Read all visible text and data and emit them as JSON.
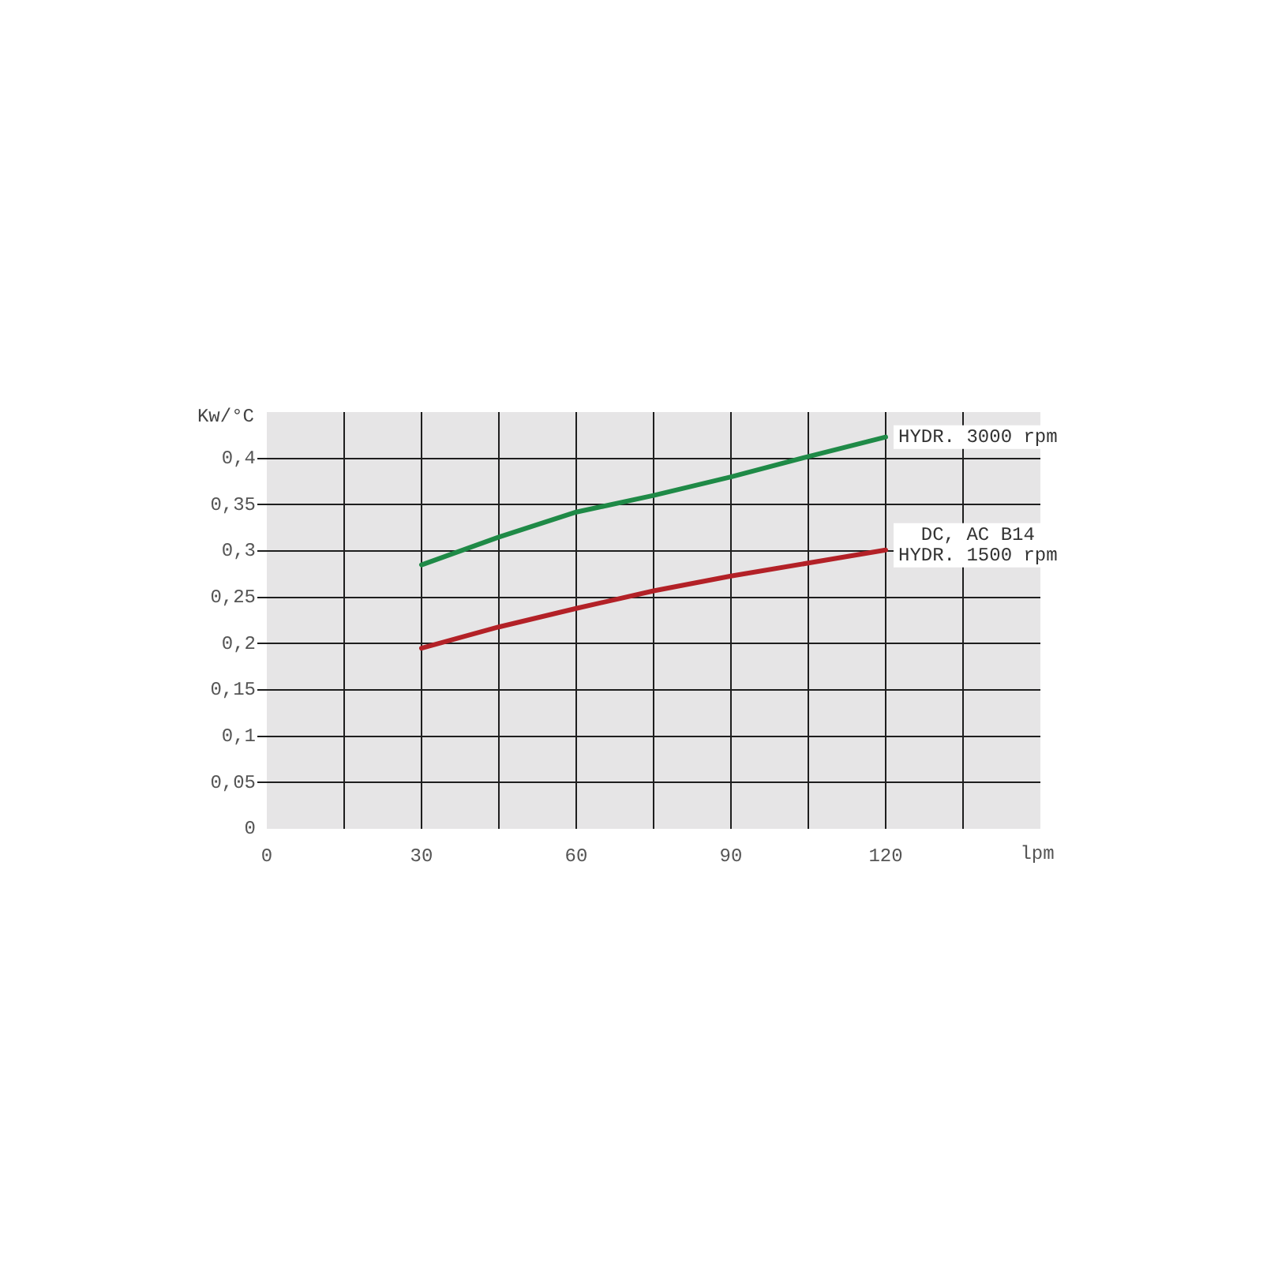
{
  "chart_data": {
    "type": "line",
    "xlabel": "lpm",
    "ylabel": "Kw/°C",
    "x": [
      30,
      45,
      60,
      75,
      90,
      105,
      120
    ],
    "series": [
      {
        "name": "HYDR. 3000 rpm",
        "color": "#1f8a47",
        "values": [
          0.285,
          0.315,
          0.342,
          0.36,
          0.38,
          0.402,
          0.423
        ]
      },
      {
        "name": "DC, AC B14 HYDR. 1500 rpm",
        "color": "#b32127",
        "values": [
          0.195,
          0.218,
          0.238,
          0.257,
          0.273,
          0.287,
          0.301
        ]
      }
    ],
    "xlim": [
      0,
      150
    ],
    "xticks": [
      0,
      {
        "value": 15,
        "label": null
      },
      30,
      {
        "value": 45,
        "label": null
      },
      60,
      {
        "value": 75,
        "label": null
      },
      90,
      {
        "value": 105,
        "label": null
      },
      120,
      {
        "value": 135,
        "label": null
      }
    ],
    "ylim": [
      0,
      0.45
    ],
    "yticks": [
      0,
      {
        "value": 0.05,
        "label": "0,05"
      },
      {
        "value": 0.1,
        "label": "0,1"
      },
      {
        "value": 0.15,
        "label": "0,15"
      },
      {
        "value": 0.2,
        "label": "0,2"
      },
      {
        "value": 0.25,
        "label": "0,25"
      },
      {
        "value": 0.3,
        "label": "0,3"
      },
      {
        "value": 0.35,
        "label": "0,35"
      },
      {
        "value": 0.4,
        "label": "0,4"
      }
    ],
    "grid": true,
    "legend": false,
    "marker": "none",
    "line_style": "solid"
  }
}
